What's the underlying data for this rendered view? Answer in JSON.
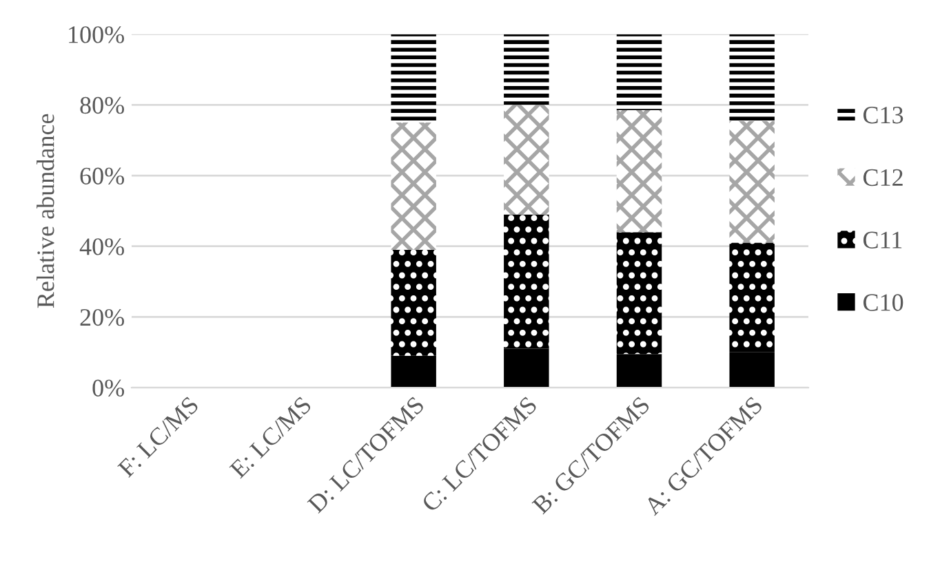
{
  "chart_data": {
    "type": "bar",
    "stacked": true,
    "ylabel": "Relative abundance",
    "categories": [
      "F: LC/MS",
      "E: LC/MS",
      "D: LC/TOFMS",
      "C: LC/TOFMS",
      "B: GC/TOFMS",
      "A: GC/TOFMS"
    ],
    "series": [
      {
        "name": "C10",
        "color": "#000000",
        "values": [
          null,
          null,
          9,
          11,
          9.5,
          10
        ]
      },
      {
        "name": "C11",
        "color": "#000000",
        "values": [
          null,
          null,
          30,
          38,
          34.5,
          31
        ]
      },
      {
        "name": "C12",
        "color": "#a6a6a6",
        "values": [
          null,
          null,
          36,
          31,
          34.5,
          34.5
        ]
      },
      {
        "name": "C13",
        "color": "#000000",
        "values": [
          null,
          null,
          25,
          20,
          21.5,
          24.5
        ]
      }
    ],
    "ylim": [
      0,
      100
    ],
    "yticks": [
      {
        "value": 0,
        "label": "0%"
      },
      {
        "value": 20,
        "label": "20%"
      },
      {
        "value": 40,
        "label": "40%"
      },
      {
        "value": 60,
        "label": "60%"
      },
      {
        "value": 80,
        "label": "80%"
      },
      {
        "value": 100,
        "label": "100%"
      }
    ],
    "grid": "y",
    "legend": "right"
  }
}
